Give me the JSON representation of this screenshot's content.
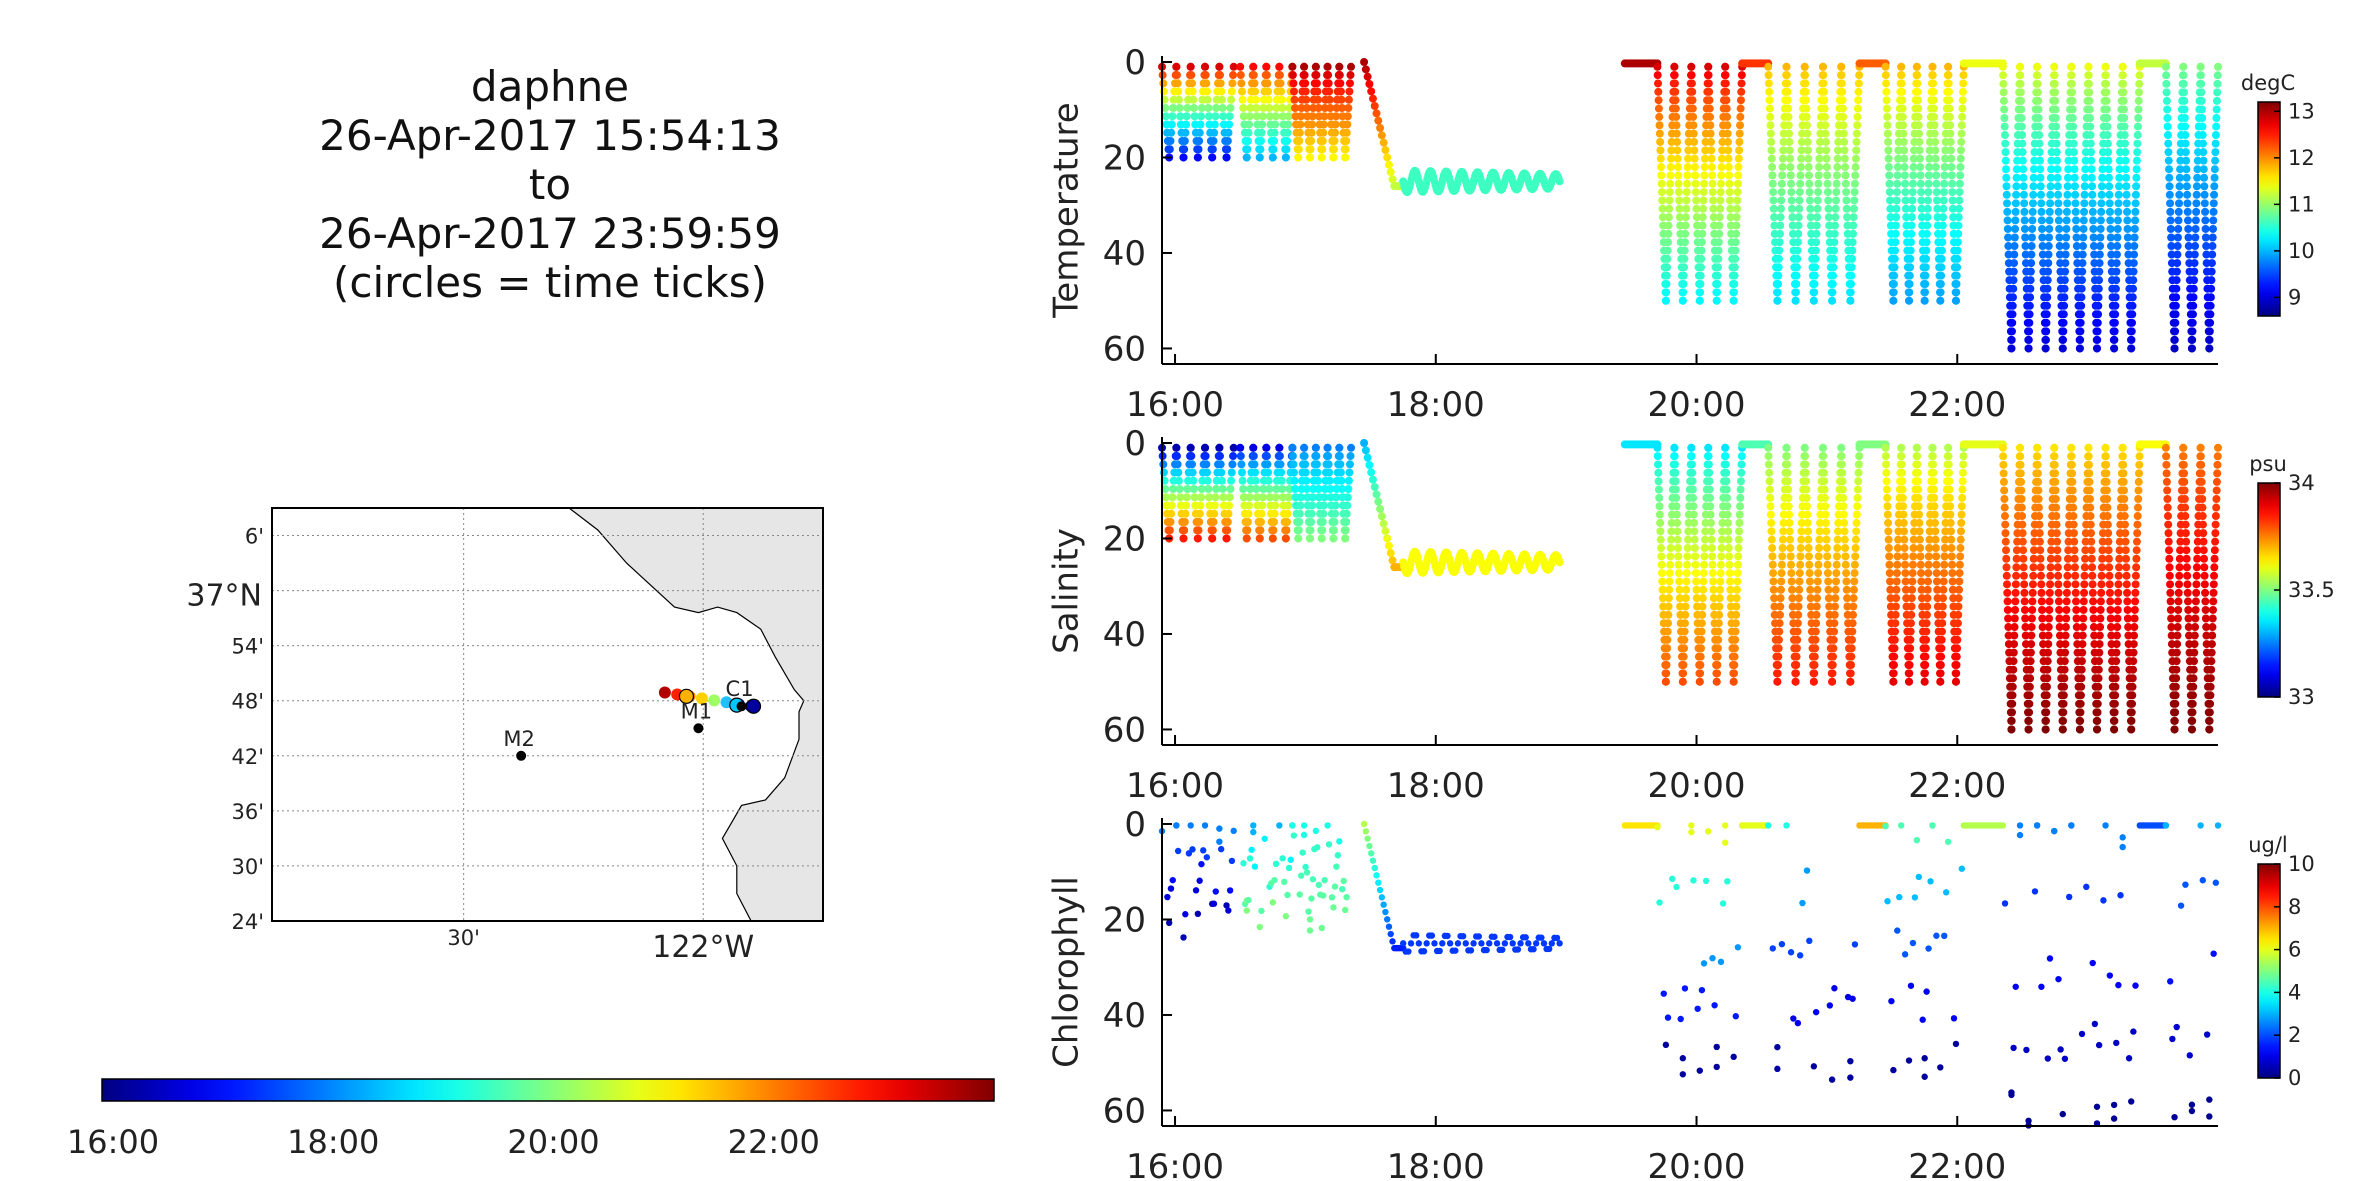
{
  "title": {
    "lines": [
      "daphne",
      "26-Apr-2017 15:54:13",
      "to",
      "26-Apr-2017 23:59:59",
      "(circles = time ticks)"
    ]
  },
  "time_colorbar": {
    "ticks": [
      "16:00",
      "18:00",
      "20:00",
      "22:00"
    ],
    "range_hours": [
      15.9,
      24.0
    ]
  },
  "map": {
    "lat_labels": [
      "6'",
      "37°N",
      "54'",
      "48'",
      "42'",
      "36'",
      "30'",
      "24'"
    ],
    "lat_values": [
      37.1,
      37.0,
      36.9,
      36.8,
      36.7,
      36.6,
      36.5,
      36.4
    ],
    "lon_labels": [
      "30'",
      "122°W"
    ],
    "lon_values": [
      -122.5,
      -122.0
    ],
    "xlim": [
      -122.9,
      -121.75
    ],
    "ylim": [
      36.4,
      37.15
    ],
    "stations": [
      {
        "name": "M1",
        "lon": -122.01,
        "lat": 36.75
      },
      {
        "name": "M2",
        "lon": -122.38,
        "lat": 36.7
      },
      {
        "name": "C1",
        "lon": -121.92,
        "lat": 36.79
      }
    ],
    "track_colors": [
      "#b00000",
      "#ff2000",
      "#ff8000",
      "#ffd000",
      "#a0ff60",
      "#20c0ff",
      "#0040ff",
      "#000080"
    ]
  },
  "chart_data": [
    {
      "type": "scatter",
      "ylabel": "Temperature",
      "unit": "degC",
      "x_ticks": [
        "16:00",
        "18:00",
        "20:00",
        "22:00"
      ],
      "x_tick_hours": [
        16,
        18,
        20,
        22
      ],
      "xlim": [
        15.9,
        24.0
      ],
      "y_ticks": [
        "0",
        "20",
        "40",
        "60"
      ],
      "ylim": [
        0,
        62
      ],
      "y_inverted": true,
      "cbar_ticks": [
        "13",
        "12",
        "11",
        "10",
        "9"
      ],
      "cbar_values": [
        13,
        12,
        11,
        10,
        9
      ],
      "crange": [
        8.6,
        13.2
      ],
      "segments": [
        {
          "t0": 15.9,
          "t1": 16.45,
          "cycles": 5,
          "max_depth": 20,
          "surf": 12.8,
          "deep": 9.2
        },
        {
          "t0": 16.5,
          "t1": 16.9,
          "cycles": 4,
          "max_depth": 20,
          "surf": 12.6,
          "deep": 10.0
        },
        {
          "t0": 16.9,
          "t1": 17.35,
          "cycles": 5,
          "max_depth": 20,
          "surf": 13.0,
          "deep": 11.5
        },
        {
          "t0": 17.45,
          "t1": 17.75,
          "descent": true,
          "from": 0,
          "to": 26,
          "surf": 13.0,
          "deep": 11.2
        },
        {
          "t0": 17.75,
          "t1": 18.95,
          "wave": true,
          "depth": 25,
          "amp": 2.3,
          "cycles": 10,
          "value": 10.6
        },
        {
          "t0": 19.45,
          "t1": 19.7,
          "surface": true,
          "value": 13.0
        },
        {
          "t0": 19.7,
          "t1": 20.35,
          "cycles": 5,
          "max_depth": 50,
          "surf": 12.8,
          "deep": 10.3
        },
        {
          "t0": 20.35,
          "t1": 20.55,
          "surface": true,
          "value": 12.4
        },
        {
          "t0": 20.55,
          "t1": 21.25,
          "cycles": 5,
          "max_depth": 50,
          "surf": 11.8,
          "deep": 10.2
        },
        {
          "t0": 21.25,
          "t1": 21.45,
          "surface": true,
          "value": 12.2
        },
        {
          "t0": 21.45,
          "t1": 22.05,
          "cycles": 5,
          "max_depth": 50,
          "surf": 11.8,
          "deep": 9.9
        },
        {
          "t0": 22.05,
          "t1": 22.35,
          "surface": true,
          "value": 11.4
        },
        {
          "t0": 22.35,
          "t1": 23.4,
          "cycles": 8,
          "max_depth": 60,
          "surf": 11.4,
          "deep": 9.0
        },
        {
          "t0": 23.4,
          "t1": 23.6,
          "surface": true,
          "value": 11.2
        },
        {
          "t0": 23.6,
          "t1": 24.0,
          "cycles": 3,
          "max_depth": 60,
          "surf": 10.9,
          "deep": 8.9
        }
      ]
    },
    {
      "type": "scatter",
      "ylabel": "Salinity",
      "unit": "psu",
      "x_ticks": [
        "16:00",
        "18:00",
        "20:00",
        "22:00"
      ],
      "x_tick_hours": [
        16,
        18,
        20,
        22
      ],
      "xlim": [
        15.9,
        24.0
      ],
      "y_ticks": [
        "0",
        "20",
        "40",
        "60"
      ],
      "ylim": [
        0,
        62
      ],
      "y_inverted": true,
      "cbar_ticks": [
        "34",
        "33.5",
        "33"
      ],
      "cbar_values": [
        34,
        33.5,
        33
      ],
      "crange": [
        33.0,
        34.0
      ],
      "segments": [
        {
          "t0": 15.9,
          "t1": 16.45,
          "cycles": 5,
          "max_depth": 20,
          "surf": 33.05,
          "deep": 33.85
        },
        {
          "t0": 16.5,
          "t1": 16.9,
          "cycles": 4,
          "max_depth": 20,
          "surf": 33.1,
          "deep": 33.8
        },
        {
          "t0": 16.9,
          "t1": 17.35,
          "cycles": 5,
          "max_depth": 20,
          "surf": 33.25,
          "deep": 33.5
        },
        {
          "t0": 17.45,
          "t1": 17.75,
          "descent": true,
          "from": 0,
          "to": 26,
          "surf": 33.3,
          "deep": 33.7
        },
        {
          "t0": 17.75,
          "t1": 18.95,
          "wave": true,
          "depth": 25,
          "amp": 2.3,
          "cycles": 10,
          "value": 33.62
        },
        {
          "t0": 19.45,
          "t1": 19.7,
          "surface": true,
          "value": 33.35
        },
        {
          "t0": 19.7,
          "t1": 20.35,
          "cycles": 5,
          "max_depth": 50,
          "surf": 33.35,
          "deep": 33.8
        },
        {
          "t0": 20.35,
          "t1": 20.55,
          "surface": true,
          "value": 33.45
        },
        {
          "t0": 20.55,
          "t1": 21.25,
          "cycles": 5,
          "max_depth": 50,
          "surf": 33.5,
          "deep": 33.85
        },
        {
          "t0": 21.25,
          "t1": 21.45,
          "surface": true,
          "value": 33.5
        },
        {
          "t0": 21.45,
          "t1": 22.05,
          "cycles": 5,
          "max_depth": 50,
          "surf": 33.55,
          "deep": 33.9
        },
        {
          "t0": 22.05,
          "t1": 22.35,
          "surface": true,
          "value": 33.6
        },
        {
          "t0": 22.35,
          "t1": 23.4,
          "cycles": 8,
          "max_depth": 60,
          "surf": 33.65,
          "deep": 34.0
        },
        {
          "t0": 23.4,
          "t1": 23.6,
          "surface": true,
          "value": 33.62
        },
        {
          "t0": 23.6,
          "t1": 24.0,
          "cycles": 3,
          "max_depth": 60,
          "surf": 33.75,
          "deep": 34.0
        }
      ]
    },
    {
      "type": "scatter",
      "ylabel": "Chlorophyll",
      "unit": "ug/l",
      "x_ticks": [
        "16:00",
        "18:00",
        "20:00",
        "22:00"
      ],
      "x_tick_hours": [
        16,
        18,
        20,
        22
      ],
      "xlim": [
        15.9,
        24.0
      ],
      "y_ticks": [
        "0",
        "20",
        "40",
        "60"
      ],
      "ylim": [
        0,
        62
      ],
      "y_inverted": true,
      "cbar_ticks": [
        "10",
        "8",
        "6",
        "4",
        "2",
        "0"
      ],
      "cbar_values": [
        10,
        8,
        6,
        4,
        2,
        0
      ],
      "crange": [
        0,
        10
      ],
      "sparse": true,
      "segments": [
        {
          "t0": 15.9,
          "t1": 16.45,
          "cycles": 5,
          "max_depth": 20,
          "surf": 2.5,
          "deep": 0.5
        },
        {
          "t0": 16.5,
          "t1": 16.9,
          "cycles": 4,
          "max_depth": 20,
          "surf": 3.0,
          "deep": 5.0
        },
        {
          "t0": 16.9,
          "t1": 17.35,
          "cycles": 5,
          "max_depth": 20,
          "surf": 4.0,
          "deep": 4.8
        },
        {
          "t0": 17.45,
          "t1": 17.75,
          "descent": true,
          "from": 0,
          "to": 26,
          "surf": 5.5,
          "deep": 1.5
        },
        {
          "t0": 17.75,
          "t1": 18.95,
          "wave": true,
          "depth": 25,
          "amp": 2.0,
          "cycles": 10,
          "value": 1.8
        },
        {
          "t0": 19.45,
          "t1": 19.7,
          "surface": true,
          "value": 6.5
        },
        {
          "t0": 19.7,
          "t1": 20.35,
          "cycles": 5,
          "max_depth": 50,
          "surf": 6.0,
          "deep": 0.3
        },
        {
          "t0": 20.35,
          "t1": 20.55,
          "surface": true,
          "value": 6.0
        },
        {
          "t0": 20.55,
          "t1": 21.25,
          "cycles": 5,
          "max_depth": 50,
          "surf": 4.0,
          "deep": 0.3
        },
        {
          "t0": 21.25,
          "t1": 21.45,
          "surface": true,
          "value": 7.0
        },
        {
          "t0": 21.45,
          "t1": 22.05,
          "cycles": 5,
          "max_depth": 50,
          "surf": 4.5,
          "deep": 0.3
        },
        {
          "t0": 22.05,
          "t1": 22.35,
          "surface": true,
          "value": 5.5
        },
        {
          "t0": 22.35,
          "t1": 23.4,
          "cycles": 8,
          "max_depth": 60,
          "surf": 2.5,
          "deep": 0.2
        },
        {
          "t0": 23.4,
          "t1": 23.6,
          "surface": true,
          "value": 2.0
        },
        {
          "t0": 23.6,
          "t1": 24.0,
          "cycles": 3,
          "max_depth": 60,
          "surf": 3.0,
          "deep": 0.2
        }
      ]
    }
  ]
}
